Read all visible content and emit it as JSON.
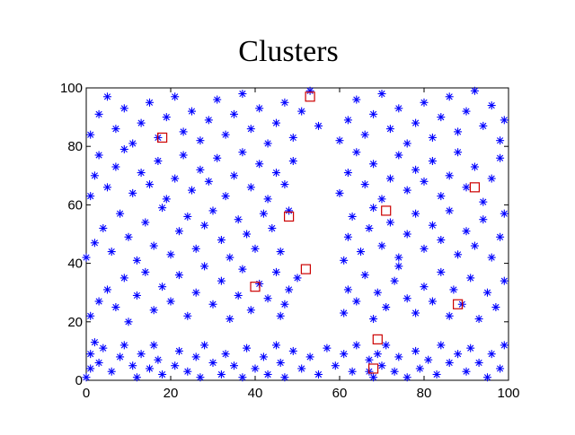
{
  "chart_data": {
    "type": "scatter",
    "title": "Clusters",
    "xlabel": "",
    "ylabel": "",
    "xlim": [
      0,
      100
    ],
    "ylim": [
      0,
      100
    ],
    "xticks": [
      0,
      20,
      40,
      60,
      80,
      100
    ],
    "yticks": [
      0,
      20,
      40,
      60,
      80,
      100
    ],
    "grid": false,
    "series": [
      {
        "marker": "asterisk",
        "color": "#0000ff",
        "points": [
          [
            0,
            1
          ],
          [
            1,
            4
          ],
          [
            1,
            9
          ],
          [
            2,
            13
          ],
          [
            3,
            6
          ],
          [
            4,
            11
          ],
          [
            6,
            3
          ],
          [
            8,
            8
          ],
          [
            9,
            12
          ],
          [
            11,
            5
          ],
          [
            12,
            1
          ],
          [
            13,
            9
          ],
          [
            15,
            4
          ],
          [
            16,
            12
          ],
          [
            17,
            7
          ],
          [
            18,
            2
          ],
          [
            21,
            5
          ],
          [
            22,
            10
          ],
          [
            24,
            3
          ],
          [
            26,
            8
          ],
          [
            27,
            1
          ],
          [
            28,
            12
          ],
          [
            30,
            6
          ],
          [
            32,
            2
          ],
          [
            33,
            9
          ],
          [
            35,
            5
          ],
          [
            37,
            1
          ],
          [
            38,
            11
          ],
          [
            40,
            4
          ],
          [
            42,
            8
          ],
          [
            43,
            2
          ],
          [
            45,
            12
          ],
          [
            46,
            6
          ],
          [
            47,
            1
          ],
          [
            49,
            10
          ],
          [
            51,
            4
          ],
          [
            53,
            8
          ],
          [
            55,
            2
          ],
          [
            57,
            11
          ],
          [
            59,
            5
          ],
          [
            61,
            9
          ],
          [
            63,
            3
          ],
          [
            64,
            12
          ],
          [
            67,
            3
          ],
          [
            67,
            7
          ],
          [
            68,
            1
          ],
          [
            69,
            9
          ],
          [
            70,
            5
          ],
          [
            71,
            12
          ],
          [
            73,
            3
          ],
          [
            74,
            8
          ],
          [
            76,
            1
          ],
          [
            78,
            10
          ],
          [
            79,
            4
          ],
          [
            81,
            7
          ],
          [
            83,
            2
          ],
          [
            84,
            12
          ],
          [
            86,
            6
          ],
          [
            88,
            9
          ],
          [
            90,
            3
          ],
          [
            91,
            11
          ],
          [
            93,
            6
          ],
          [
            95,
            1
          ],
          [
            96,
            9
          ],
          [
            98,
            4
          ],
          [
            99,
            12
          ],
          [
            1,
            22
          ],
          [
            3,
            27
          ],
          [
            5,
            31
          ],
          [
            7,
            25
          ],
          [
            9,
            35
          ],
          [
            10,
            20
          ],
          [
            12,
            29
          ],
          [
            14,
            37
          ],
          [
            16,
            24
          ],
          [
            18,
            32
          ],
          [
            20,
            27
          ],
          [
            22,
            36
          ],
          [
            24,
            22
          ],
          [
            26,
            30
          ],
          [
            28,
            39
          ],
          [
            30,
            26
          ],
          [
            32,
            34
          ],
          [
            34,
            21
          ],
          [
            36,
            29
          ],
          [
            37,
            38
          ],
          [
            39,
            24
          ],
          [
            41,
            33
          ],
          [
            43,
            28
          ],
          [
            45,
            37
          ],
          [
            46,
            22
          ],
          [
            48,
            31
          ],
          [
            47,
            26
          ],
          [
            50,
            35
          ],
          [
            61,
            23
          ],
          [
            62,
            31
          ],
          [
            64,
            27
          ],
          [
            66,
            36
          ],
          [
            68,
            21
          ],
          [
            69,
            30
          ],
          [
            71,
            25
          ],
          [
            73,
            34
          ],
          [
            74,
            39
          ],
          [
            76,
            28
          ],
          [
            78,
            23
          ],
          [
            80,
            32
          ],
          [
            82,
            27
          ],
          [
            84,
            37
          ],
          [
            86,
            22
          ],
          [
            87,
            31
          ],
          [
            89,
            26
          ],
          [
            91,
            35
          ],
          [
            93,
            21
          ],
          [
            95,
            30
          ],
          [
            97,
            25
          ],
          [
            99,
            34
          ],
          [
            0,
            42
          ],
          [
            2,
            47
          ],
          [
            4,
            52
          ],
          [
            6,
            44
          ],
          [
            8,
            57
          ],
          [
            10,
            49
          ],
          [
            12,
            41
          ],
          [
            14,
            54
          ],
          [
            16,
            46
          ],
          [
            18,
            59
          ],
          [
            20,
            43
          ],
          [
            22,
            51
          ],
          [
            24,
            56
          ],
          [
            26,
            45
          ],
          [
            28,
            53
          ],
          [
            30,
            58
          ],
          [
            32,
            48
          ],
          [
            34,
            42
          ],
          [
            36,
            55
          ],
          [
            38,
            50
          ],
          [
            40,
            45
          ],
          [
            42,
            57
          ],
          [
            44,
            52
          ],
          [
            46,
            44
          ],
          [
            48,
            58
          ],
          [
            61,
            41
          ],
          [
            62,
            49
          ],
          [
            63,
            56
          ],
          [
            65,
            44
          ],
          [
            67,
            52
          ],
          [
            68,
            59
          ],
          [
            70,
            46
          ],
          [
            72,
            54
          ],
          [
            74,
            42
          ],
          [
            76,
            50
          ],
          [
            78,
            57
          ],
          [
            80,
            45
          ],
          [
            82,
            53
          ],
          [
            84,
            48
          ],
          [
            86,
            58
          ],
          [
            88,
            43
          ],
          [
            90,
            51
          ],
          [
            92,
            46
          ],
          [
            94,
            55
          ],
          [
            96,
            42
          ],
          [
            98,
            49
          ],
          [
            99,
            57
          ],
          [
            1,
            63
          ],
          [
            2,
            70
          ],
          [
            3,
            77
          ],
          [
            5,
            66
          ],
          [
            7,
            73
          ],
          [
            9,
            79
          ],
          [
            11,
            64
          ],
          [
            13,
            71
          ],
          [
            15,
            67
          ],
          [
            17,
            75
          ],
          [
            19,
            62
          ],
          [
            21,
            69
          ],
          [
            23,
            77
          ],
          [
            25,
            65
          ],
          [
            27,
            72
          ],
          [
            29,
            68
          ],
          [
            31,
            76
          ],
          [
            33,
            63
          ],
          [
            35,
            70
          ],
          [
            37,
            78
          ],
          [
            39,
            66
          ],
          [
            41,
            74
          ],
          [
            43,
            62
          ],
          [
            45,
            71
          ],
          [
            47,
            67
          ],
          [
            49,
            75
          ],
          [
            60,
            64
          ],
          [
            62,
            71
          ],
          [
            64,
            78
          ],
          [
            66,
            67
          ],
          [
            68,
            74
          ],
          [
            70,
            62
          ],
          [
            72,
            69
          ],
          [
            74,
            77
          ],
          [
            76,
            65
          ],
          [
            78,
            72
          ],
          [
            80,
            68
          ],
          [
            82,
            75
          ],
          [
            84,
            63
          ],
          [
            86,
            70
          ],
          [
            88,
            78
          ],
          [
            90,
            66
          ],
          [
            92,
            73
          ],
          [
            94,
            61
          ],
          [
            96,
            69
          ],
          [
            98,
            76
          ],
          [
            1,
            84
          ],
          [
            3,
            91
          ],
          [
            5,
            97
          ],
          [
            7,
            86
          ],
          [
            9,
            93
          ],
          [
            11,
            81
          ],
          [
            13,
            88
          ],
          [
            15,
            95
          ],
          [
            17,
            83
          ],
          [
            19,
            90
          ],
          [
            21,
            97
          ],
          [
            23,
            85
          ],
          [
            25,
            92
          ],
          [
            27,
            82
          ],
          [
            29,
            89
          ],
          [
            31,
            96
          ],
          [
            33,
            84
          ],
          [
            35,
            91
          ],
          [
            37,
            98
          ],
          [
            39,
            86
          ],
          [
            41,
            93
          ],
          [
            43,
            81
          ],
          [
            45,
            88
          ],
          [
            47,
            95
          ],
          [
            49,
            83
          ],
          [
            51,
            92
          ],
          [
            53,
            99
          ],
          [
            55,
            87
          ],
          [
            60,
            82
          ],
          [
            62,
            89
          ],
          [
            64,
            96
          ],
          [
            66,
            84
          ],
          [
            68,
            91
          ],
          [
            70,
            98
          ],
          [
            72,
            86
          ],
          [
            74,
            93
          ],
          [
            76,
            81
          ],
          [
            78,
            88
          ],
          [
            80,
            95
          ],
          [
            82,
            83
          ],
          [
            84,
            90
          ],
          [
            86,
            97
          ],
          [
            88,
            85
          ],
          [
            90,
            92
          ],
          [
            92,
            99
          ],
          [
            94,
            87
          ],
          [
            96,
            94
          ],
          [
            98,
            82
          ],
          [
            99,
            89
          ]
        ]
      },
      {
        "marker": "square",
        "color": "#cc0000",
        "points": [
          [
            18,
            83
          ],
          [
            53,
            97
          ],
          [
            48,
            56
          ],
          [
            52,
            38
          ],
          [
            40,
            32
          ],
          [
            71,
            58
          ],
          [
            92,
            66
          ],
          [
            88,
            26
          ],
          [
            69,
            14
          ],
          [
            68,
            4
          ]
        ]
      }
    ]
  }
}
